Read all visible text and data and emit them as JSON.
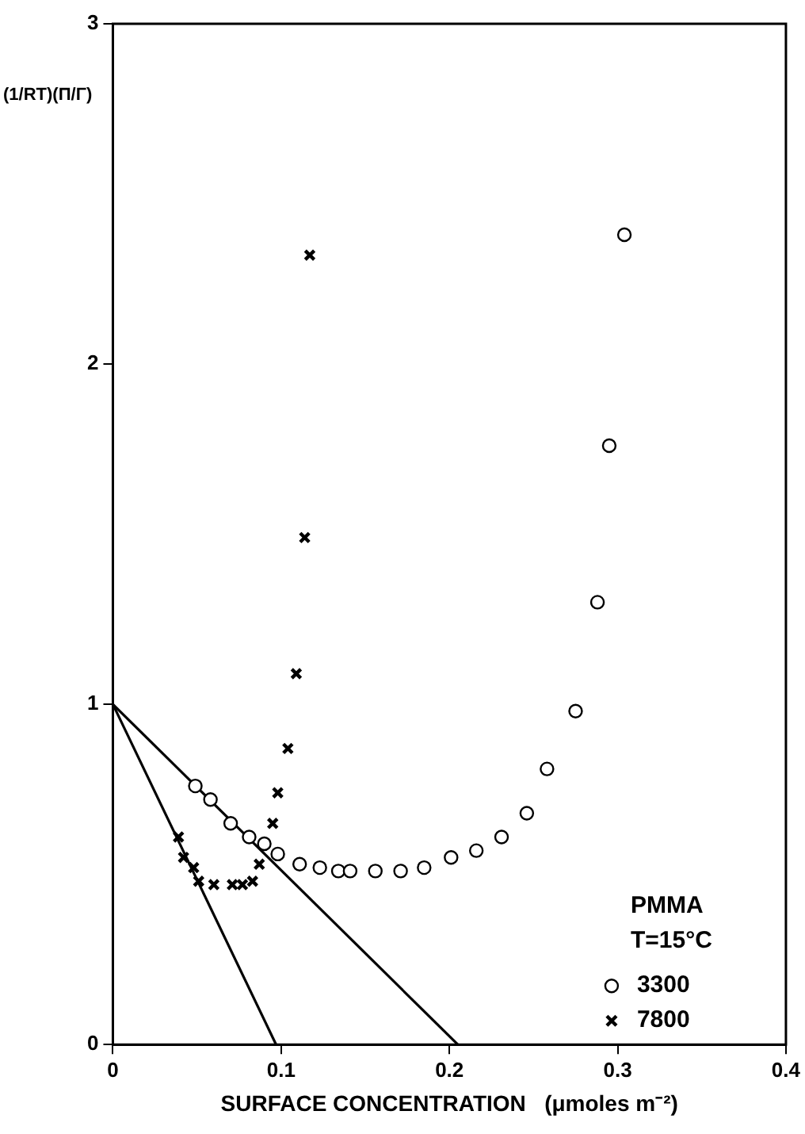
{
  "chart_data": {
    "type": "scatter",
    "xlabel": "SURFACE CONCENTRATION   (μmoles m⁻²)",
    "ylabel": "(1/RT)(Π/Γ)",
    "legend_title": "PMMA",
    "annotations": [
      "T=15°C"
    ],
    "legend": "bottom right",
    "grid": false,
    "xlim": [
      0,
      0.4
    ],
    "xticks": [
      0,
      0.1,
      0.2,
      0.3,
      0.4
    ],
    "ylim": [
      0,
      3
    ],
    "yticks": [
      0,
      1,
      2,
      3
    ],
    "series": [
      {
        "name": "3300",
        "marker": "circle",
        "color": "#000000",
        "x": [
          0.049,
          0.058,
          0.07,
          0.081,
          0.09,
          0.098,
          0.111,
          0.123,
          0.134,
          0.141,
          0.156,
          0.171,
          0.185,
          0.201,
          0.216,
          0.231,
          0.246,
          0.258,
          0.275,
          0.288,
          0.295,
          0.304
        ],
        "values": [
          0.76,
          0.72,
          0.65,
          0.61,
          0.59,
          0.56,
          0.53,
          0.52,
          0.51,
          0.51,
          0.51,
          0.51,
          0.52,
          0.55,
          0.57,
          0.61,
          0.68,
          0.81,
          0.98,
          1.3,
          1.76,
          2.38
        ]
      },
      {
        "name": "7800",
        "marker": "cross",
        "color": "#000000",
        "x": [
          0.039,
          0.042,
          0.048,
          0.051,
          0.06,
          0.071,
          0.077,
          0.083,
          0.087,
          0.095,
          0.098,
          0.104,
          0.109,
          0.114,
          0.117
        ],
        "values": [
          0.61,
          0.55,
          0.52,
          0.48,
          0.47,
          0.47,
          0.47,
          0.48,
          0.53,
          0.65,
          0.74,
          0.87,
          1.09,
          1.49,
          2.32
        ]
      },
      {
        "type": "line",
        "marker": "none",
        "color": "#000000",
        "x": [
          0,
          0.205
        ],
        "values": [
          1,
          0
        ]
      },
      {
        "type": "line",
        "marker": "none",
        "color": "#000000",
        "x": [
          0,
          0.097
        ],
        "values": [
          1,
          0
        ]
      }
    ]
  }
}
